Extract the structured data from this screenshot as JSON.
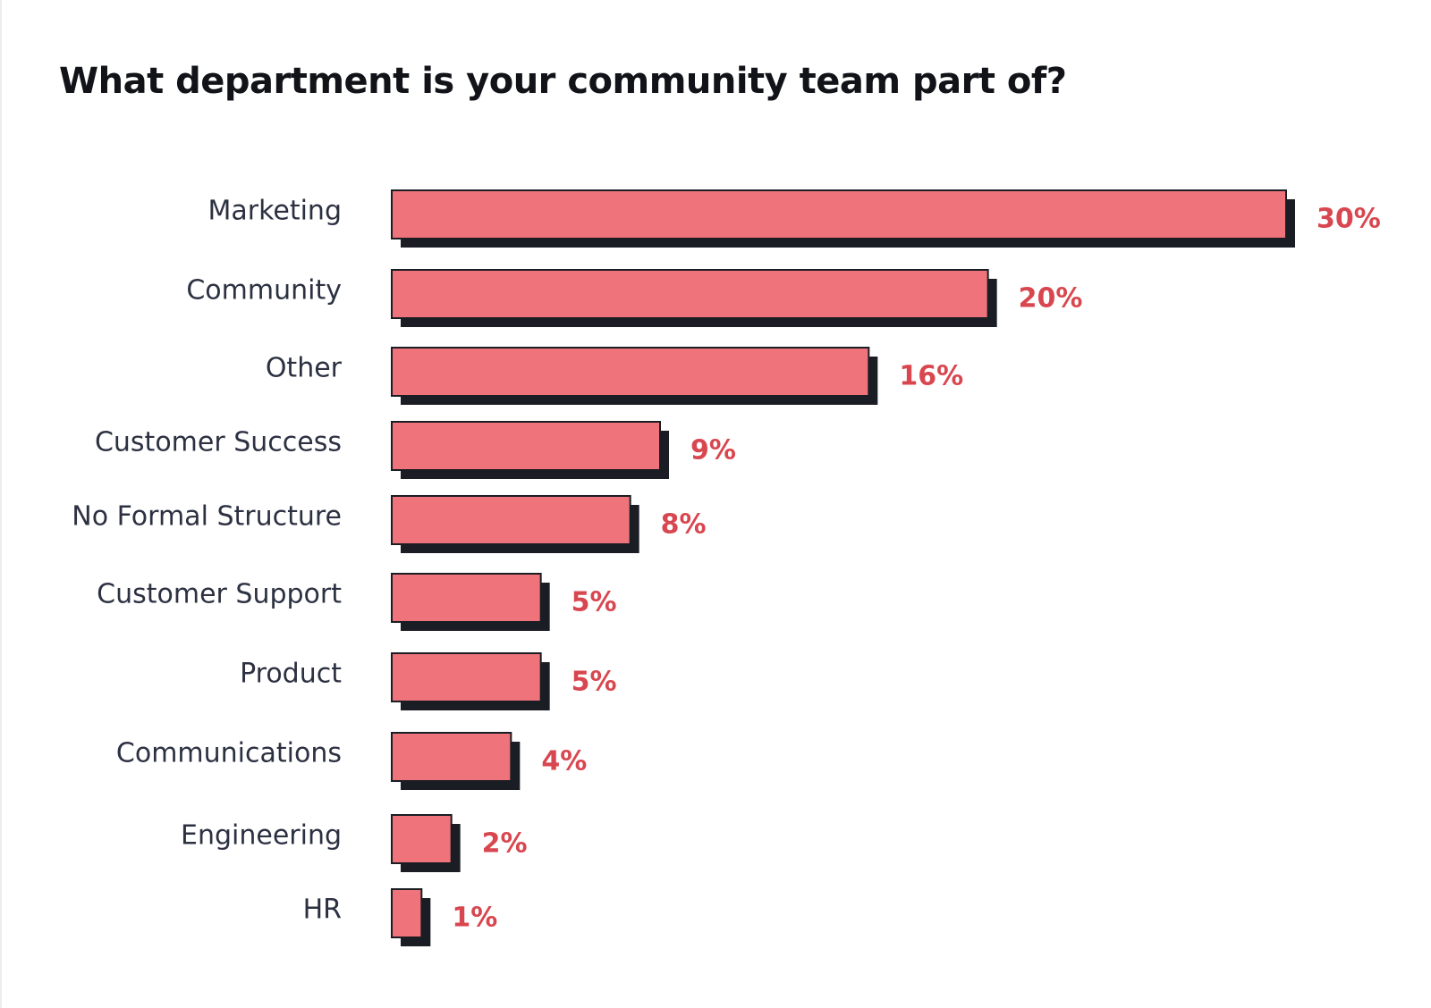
{
  "chart_data": {
    "type": "bar",
    "orientation": "horizontal",
    "title": "What department is your community team part of?",
    "xlabel": "",
    "ylabel": "",
    "categories": [
      "Marketing",
      "Community",
      "Other",
      "Customer Success",
      "No Formal Structure",
      "Customer Support",
      "Product",
      "Communications",
      "Engineering",
      "HR"
    ],
    "values": [
      30,
      20,
      16,
      9,
      8,
      5,
      5,
      4,
      2,
      1
    ],
    "value_labels": [
      "30%",
      "20%",
      "16%",
      "9%",
      "8%",
      "5%",
      "5%",
      "4%",
      "2%",
      "1%"
    ],
    "xlim": [
      0,
      30
    ],
    "grid": false,
    "legend": "none",
    "colors": {
      "bar": "#ee737a",
      "bar_shadow": "#1b1d24",
      "bar_outline": "#1b1d24",
      "value_label": "#d8474f",
      "category_label": "#2c3142",
      "title": "#111318"
    }
  }
}
